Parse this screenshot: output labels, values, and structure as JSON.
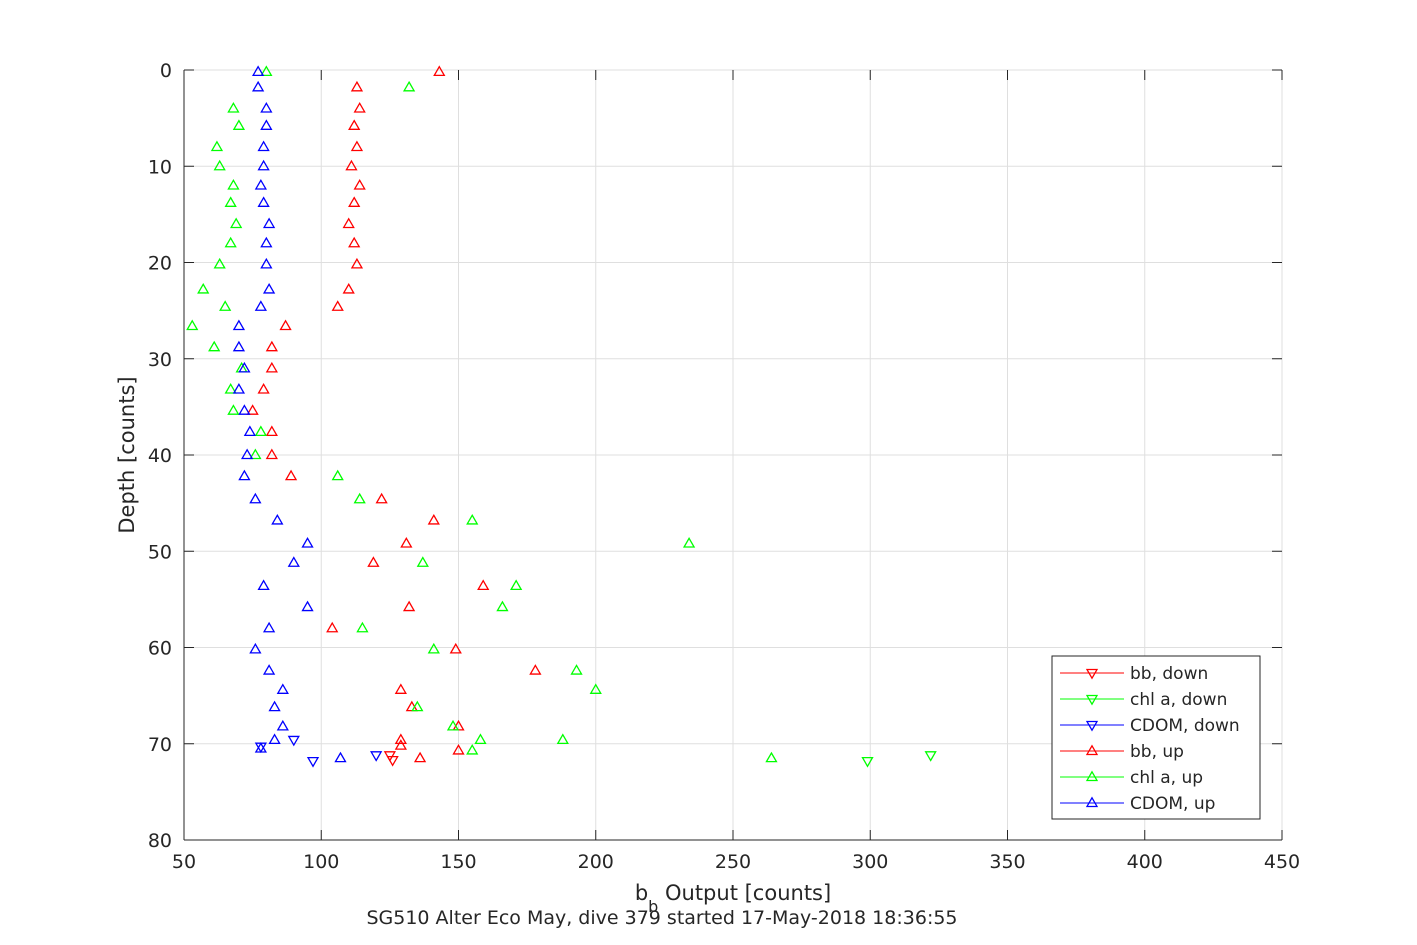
{
  "chart_data": {
    "type": "scatter",
    "xlabel": "b",
    "xlabel_sub": "b",
    "xlabel_rest": " Output [counts]",
    "ylabel": "Depth [counts]",
    "caption": "SG510 Alter Eco May, dive 379 started 17-May-2018 18:36:55",
    "xlim": [
      50,
      450
    ],
    "ylim": [
      0,
      80
    ],
    "y_reversed": true,
    "xticks": [
      50,
      100,
      150,
      200,
      250,
      300,
      350,
      400,
      450
    ],
    "yticks": [
      0,
      10,
      20,
      30,
      40,
      50,
      60,
      70,
      80
    ],
    "grid": true,
    "legend_position": "bottom-right",
    "series": [
      {
        "name": "bb, down",
        "color": "#ff0000",
        "marker": "triangle-down",
        "points": [
          [
            125,
            71.2
          ],
          [
            126,
            71.7
          ]
        ]
      },
      {
        "name": "chl a, down",
        "color": "#00ff00",
        "marker": "triangle-down",
        "points": [
          [
            322,
            71.2
          ],
          [
            299,
            71.8
          ]
        ]
      },
      {
        "name": "CDOM, down",
        "color": "#0000ff",
        "marker": "triangle-down",
        "points": [
          [
            78,
            70.3
          ],
          [
            90,
            69.6
          ],
          [
            120,
            71.2
          ],
          [
            97,
            71.8
          ]
        ]
      },
      {
        "name": "bb, up",
        "color": "#ff0000",
        "marker": "triangle-up",
        "points": [
          [
            143,
            0.2
          ],
          [
            113,
            1.8
          ],
          [
            114,
            4.0
          ],
          [
            112,
            5.8
          ],
          [
            113,
            8.0
          ],
          [
            111,
            10.0
          ],
          [
            114,
            12.0
          ],
          [
            112,
            13.8
          ],
          [
            110,
            16.0
          ],
          [
            112,
            18.0
          ],
          [
            113,
            20.2
          ],
          [
            110,
            22.8
          ],
          [
            106,
            24.6
          ],
          [
            87,
            26.6
          ],
          [
            82,
            28.8
          ],
          [
            82,
            31.0
          ],
          [
            79,
            33.2
          ],
          [
            75,
            35.4
          ],
          [
            82,
            37.6
          ],
          [
            82,
            40.0
          ],
          [
            89,
            42.2
          ],
          [
            122,
            44.6
          ],
          [
            141,
            46.8
          ],
          [
            131,
            49.2
          ],
          [
            119,
            51.2
          ],
          [
            159,
            53.6
          ],
          [
            132,
            55.8
          ],
          [
            104,
            58.0
          ],
          [
            149,
            60.2
          ],
          [
            178,
            62.4
          ],
          [
            129,
            64.4
          ],
          [
            133,
            66.2
          ],
          [
            150,
            68.2
          ],
          [
            129,
            69.6
          ],
          [
            129,
            70.2
          ],
          [
            150,
            70.7
          ],
          [
            136,
            71.5
          ]
        ]
      },
      {
        "name": "chl a, up",
        "color": "#00ff00",
        "marker": "triangle-up",
        "points": [
          [
            80,
            0.2
          ],
          [
            132,
            1.8
          ],
          [
            68,
            4.0
          ],
          [
            70,
            5.8
          ],
          [
            62,
            8.0
          ],
          [
            63,
            10.0
          ],
          [
            68,
            12.0
          ],
          [
            67,
            13.8
          ],
          [
            69,
            16.0
          ],
          [
            67,
            18.0
          ],
          [
            63,
            20.2
          ],
          [
            57,
            22.8
          ],
          [
            65,
            24.6
          ],
          [
            53,
            26.6
          ],
          [
            61,
            28.8
          ],
          [
            71,
            31.0
          ],
          [
            67,
            33.2
          ],
          [
            68,
            35.4
          ],
          [
            78,
            37.6
          ],
          [
            76,
            40.0
          ],
          [
            106,
            42.2
          ],
          [
            114,
            44.6
          ],
          [
            155,
            46.8
          ],
          [
            234,
            49.2
          ],
          [
            137,
            51.2
          ],
          [
            171,
            53.6
          ],
          [
            166,
            55.8
          ],
          [
            115,
            58.0
          ],
          [
            141,
            60.2
          ],
          [
            193,
            62.4
          ],
          [
            200,
            64.4
          ],
          [
            135,
            66.2
          ],
          [
            148,
            68.2
          ],
          [
            158,
            69.6
          ],
          [
            188,
            69.6
          ],
          [
            155,
            70.7
          ],
          [
            264,
            71.5
          ]
        ]
      },
      {
        "name": "CDOM, up",
        "color": "#0000ff",
        "marker": "triangle-up",
        "points": [
          [
            77,
            0.2
          ],
          [
            77,
            1.8
          ],
          [
            80,
            4.0
          ],
          [
            80,
            5.8
          ],
          [
            79,
            8.0
          ],
          [
            79,
            10.0
          ],
          [
            78,
            12.0
          ],
          [
            79,
            13.8
          ],
          [
            81,
            16.0
          ],
          [
            80,
            18.0
          ],
          [
            80,
            20.2
          ],
          [
            81,
            22.8
          ],
          [
            78,
            24.6
          ],
          [
            70,
            26.6
          ],
          [
            70,
            28.8
          ],
          [
            72,
            31.0
          ],
          [
            70,
            33.2
          ],
          [
            72,
            35.4
          ],
          [
            74,
            37.6
          ],
          [
            73,
            40.0
          ],
          [
            72,
            42.2
          ],
          [
            76,
            44.6
          ],
          [
            84,
            46.8
          ],
          [
            95,
            49.2
          ],
          [
            90,
            51.2
          ],
          [
            79,
            53.6
          ],
          [
            95,
            55.8
          ],
          [
            81,
            58.0
          ],
          [
            76,
            60.2
          ],
          [
            81,
            62.4
          ],
          [
            86,
            64.4
          ],
          [
            83,
            66.2
          ],
          [
            86,
            68.2
          ],
          [
            83,
            69.6
          ],
          [
            78,
            70.5
          ],
          [
            107,
            71.5
          ]
        ]
      }
    ]
  }
}
